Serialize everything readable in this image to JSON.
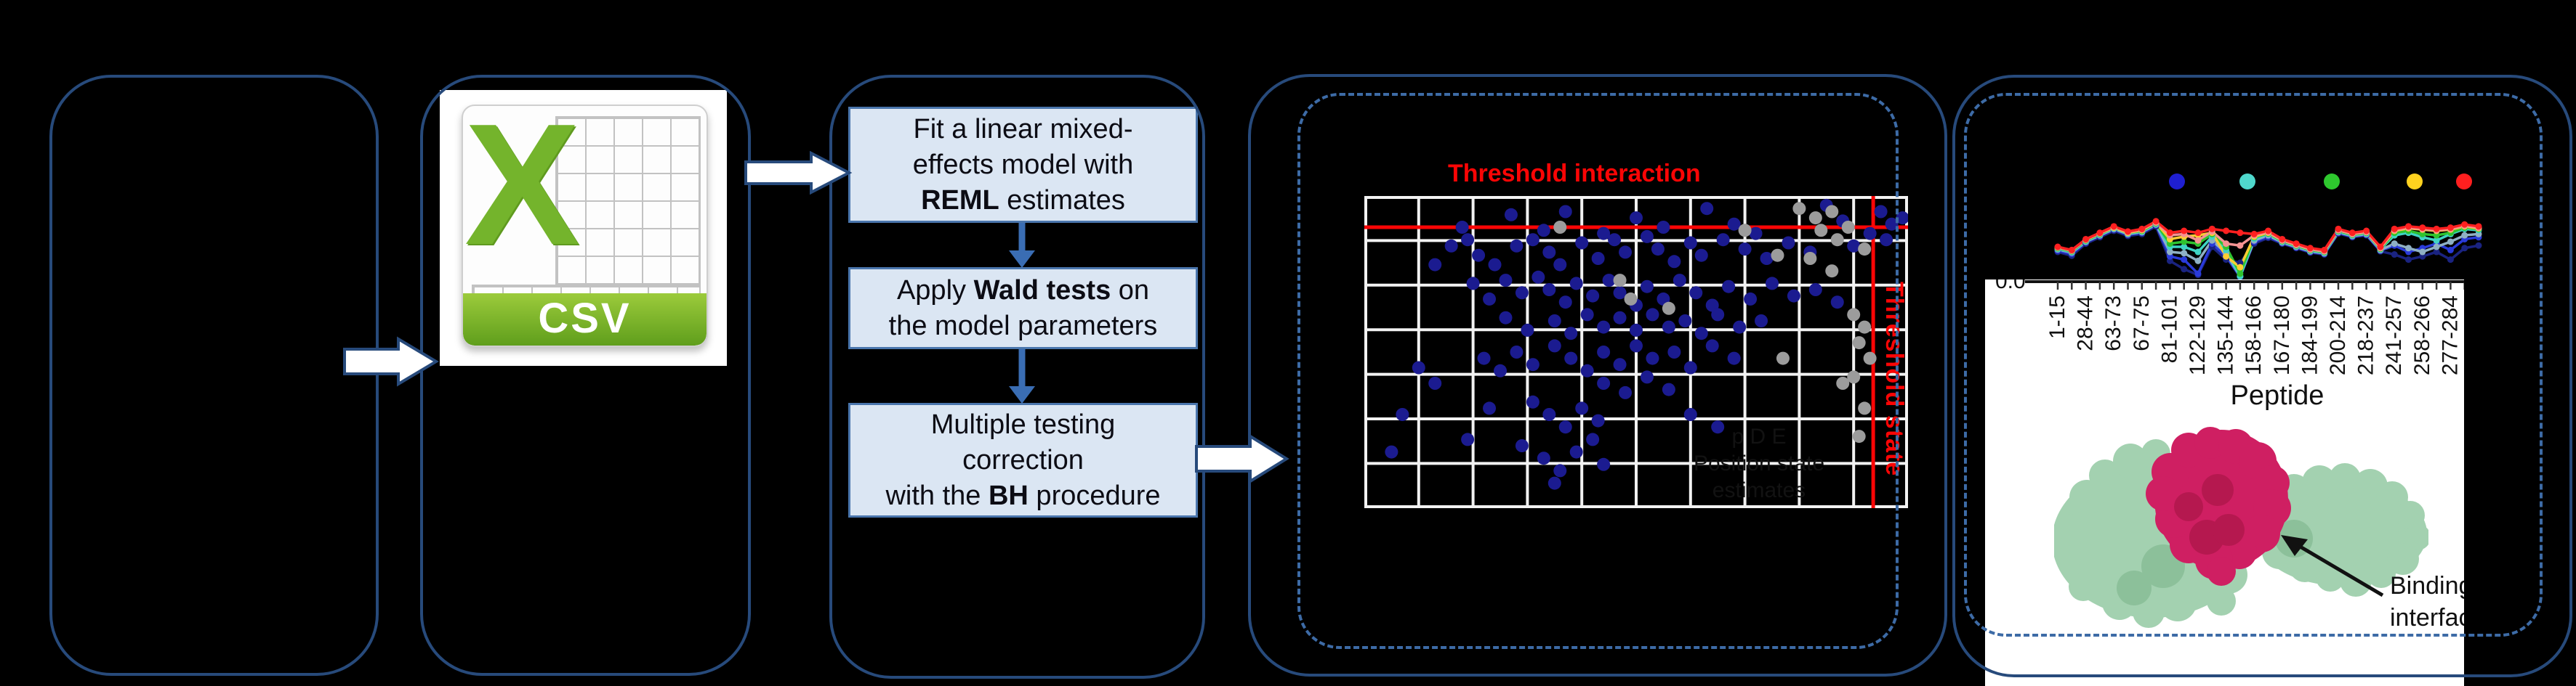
{
  "figure": {
    "background": "#000000",
    "panel_border_color": "#274a7b",
    "dashed_border_color": "#3d6ba6",
    "red_accent": "#fb0505"
  },
  "panel2": {
    "csv_icon": {
      "letter": "X",
      "banner_label": "CSV"
    }
  },
  "panel3": {
    "boxes": [
      {
        "lines": [
          [
            {
              "t": "Fit a linear mixed-",
              "b": 0
            }
          ],
          [
            {
              "t": "effects model with",
              "b": 0
            }
          ],
          [
            {
              "t": "REML",
              "b": 1
            },
            {
              "t": " estimates",
              "b": 0
            }
          ]
        ]
      },
      {
        "lines": [
          [
            {
              "t": "Apply ",
              "b": 0
            },
            {
              "t": "Wald tests",
              "b": 1
            },
            {
              "t": " on",
              "b": 0
            }
          ],
          [
            {
              "t": "the model parameters",
              "b": 0
            }
          ]
        ]
      },
      {
        "lines": [
          [
            {
              "t": "Multiple testing",
              "b": 0
            }
          ],
          [
            {
              "t": "correction",
              "b": 0
            }
          ],
          [
            {
              "t": "with the ",
              "b": 0
            },
            {
              "t": "BH",
              "b": 1
            },
            {
              "t": " procedure",
              "b": 0
            }
          ]
        ]
      }
    ]
  },
  "panel4": {
    "threshold_interaction": "Threshold interaction",
    "threshold_state": "Threshold state",
    "faint_caption": [
      "p    D    E",
      "Position state estimates"
    ]
  },
  "panel5": {
    "annotation": [
      "Binding",
      "interface"
    ]
  },
  "chart_data": [
    {
      "type": "scatter",
      "title": "Threshold interaction",
      "annotations": [
        "Threshold interaction",
        "Threshold state"
      ],
      "grid": "on",
      "threshold_interaction_y": 0.1,
      "threshold_state_x": 0.936,
      "series": [
        {
          "name": "significant-points",
          "color": "#1b1b90",
          "points": [
            [
              0.18,
              0.1
            ],
            [
              0.27,
              0.06
            ],
            [
              0.33,
              0.11
            ],
            [
              0.37,
              0.05
            ],
            [
              0.44,
              0.12
            ],
            [
              0.5,
              0.07
            ],
            [
              0.55,
              0.1
            ],
            [
              0.63,
              0.04
            ],
            [
              0.68,
              0.09
            ],
            [
              0.72,
              0.12
            ],
            [
              0.85,
              0.03
            ],
            [
              0.88,
              0.08
            ],
            [
              0.95,
              0.05
            ],
            [
              0.97,
              0.09
            ],
            [
              0.93,
              0.12
            ],
            [
              0.99,
              0.07
            ],
            [
              0.16,
              0.16
            ],
            [
              0.19,
              0.14
            ],
            [
              0.21,
              0.19
            ],
            [
              0.24,
              0.22
            ],
            [
              0.28,
              0.16
            ],
            [
              0.31,
              0.14
            ],
            [
              0.34,
              0.18
            ],
            [
              0.36,
              0.22
            ],
            [
              0.4,
              0.15
            ],
            [
              0.43,
              0.2
            ],
            [
              0.46,
              0.14
            ],
            [
              0.48,
              0.18
            ],
            [
              0.52,
              0.13
            ],
            [
              0.54,
              0.17
            ],
            [
              0.57,
              0.21
            ],
            [
              0.6,
              0.15
            ],
            [
              0.62,
              0.19
            ],
            [
              0.66,
              0.14
            ],
            [
              0.7,
              0.17
            ],
            [
              0.74,
              0.2
            ],
            [
              0.78,
              0.15
            ],
            [
              0.82,
              0.18
            ],
            [
              0.9,
              0.16
            ],
            [
              0.96,
              0.14
            ],
            [
              0.13,
              0.22
            ],
            [
              0.2,
              0.28
            ],
            [
              0.23,
              0.33
            ],
            [
              0.26,
              0.27
            ],
            [
              0.29,
              0.31
            ],
            [
              0.32,
              0.26
            ],
            [
              0.34,
              0.3
            ],
            [
              0.37,
              0.34
            ],
            [
              0.39,
              0.28
            ],
            [
              0.42,
              0.32
            ],
            [
              0.45,
              0.27
            ],
            [
              0.47,
              0.31
            ],
            [
              0.5,
              0.35
            ],
            [
              0.52,
              0.29
            ],
            [
              0.55,
              0.33
            ],
            [
              0.58,
              0.27
            ],
            [
              0.61,
              0.31
            ],
            [
              0.64,
              0.35
            ],
            [
              0.67,
              0.29
            ],
            [
              0.71,
              0.33
            ],
            [
              0.75,
              0.28
            ],
            [
              0.79,
              0.32
            ],
            [
              0.83,
              0.3
            ],
            [
              0.87,
              0.34
            ],
            [
              0.35,
              0.4
            ],
            [
              0.38,
              0.44
            ],
            [
              0.41,
              0.38
            ],
            [
              0.44,
              0.42
            ],
            [
              0.47,
              0.39
            ],
            [
              0.5,
              0.43
            ],
            [
              0.53,
              0.38
            ],
            [
              0.56,
              0.42
            ],
            [
              0.59,
              0.4
            ],
            [
              0.62,
              0.44
            ],
            [
              0.65,
              0.38
            ],
            [
              0.69,
              0.42
            ],
            [
              0.73,
              0.4
            ],
            [
              0.3,
              0.43
            ],
            [
              0.26,
              0.39
            ],
            [
              0.22,
              0.52
            ],
            [
              0.25,
              0.56
            ],
            [
              0.28,
              0.5
            ],
            [
              0.31,
              0.54
            ],
            [
              0.35,
              0.48
            ],
            [
              0.38,
              0.52
            ],
            [
              0.41,
              0.56
            ],
            [
              0.44,
              0.5
            ],
            [
              0.47,
              0.54
            ],
            [
              0.5,
              0.48
            ],
            [
              0.53,
              0.52
            ],
            [
              0.57,
              0.5
            ],
            [
              0.6,
              0.55
            ],
            [
              0.64,
              0.48
            ],
            [
              0.68,
              0.52
            ],
            [
              0.1,
              0.55
            ],
            [
              0.13,
              0.6
            ],
            [
              0.44,
              0.6
            ],
            [
              0.48,
              0.63
            ],
            [
              0.52,
              0.58
            ],
            [
              0.56,
              0.62
            ],
            [
              0.07,
              0.7
            ],
            [
              0.19,
              0.78
            ],
            [
              0.23,
              0.68
            ],
            [
              0.31,
              0.66
            ],
            [
              0.34,
              0.7
            ],
            [
              0.37,
              0.74
            ],
            [
              0.4,
              0.68
            ],
            [
              0.43,
              0.72
            ],
            [
              0.29,
              0.8
            ],
            [
              0.33,
              0.84
            ],
            [
              0.36,
              0.88
            ],
            [
              0.39,
              0.82
            ],
            [
              0.42,
              0.78
            ],
            [
              0.35,
              0.92
            ],
            [
              0.44,
              0.86
            ],
            [
              0.05,
              0.82
            ],
            [
              0.6,
              0.7
            ],
            [
              0.65,
              0.74
            ]
          ]
        },
        {
          "name": "non-significant-points",
          "color": "#9c9c9c",
          "points": [
            [
              0.8,
              0.04
            ],
            [
              0.83,
              0.07
            ],
            [
              0.86,
              0.05
            ],
            [
              0.84,
              0.11
            ],
            [
              0.87,
              0.14
            ],
            [
              0.89,
              0.1
            ],
            [
              0.92,
              0.17
            ],
            [
              0.82,
              0.2
            ],
            [
              0.86,
              0.24
            ],
            [
              0.9,
              0.38
            ],
            [
              0.92,
              0.42
            ],
            [
              0.91,
              0.47
            ],
            [
              0.93,
              0.52
            ],
            [
              0.9,
              0.58
            ],
            [
              0.92,
              0.68
            ],
            [
              0.88,
              0.6
            ],
            [
              0.91,
              0.77
            ],
            [
              0.47,
              0.27
            ],
            [
              0.49,
              0.33
            ],
            [
              0.56,
              0.36
            ],
            [
              0.77,
              0.52
            ],
            [
              0.7,
              0.11
            ],
            [
              0.76,
              0.19
            ],
            [
              0.36,
              0.1
            ]
          ]
        }
      ]
    },
    {
      "type": "line",
      "xlabel": "Peptide",
      "x_tick_labels": [
        "1-15",
        "28-44",
        "63-73",
        "67-75",
        "81-101",
        "122-129",
        "135-144",
        "158-166",
        "167-180",
        "184-199",
        "200-214",
        "218-237",
        "241-257",
        "258-266",
        "277-284"
      ],
      "y_tick_labels": [
        "0.0"
      ],
      "legend_dot_colors": [
        "#1f1fd1",
        "#4fd8cc",
        "#2ec82e",
        "#ffd21f",
        "#ff1f1f"
      ],
      "series": [
        {
          "name": "navy",
          "color": "#1a2380",
          "values": [
            0.42,
            0.36,
            0.55,
            0.65,
            0.75,
            0.67,
            0.7,
            0.82,
            0.28,
            0.15,
            0.06,
            0.5,
            0.3,
            0.25,
            0.55,
            0.64,
            0.55,
            0.48,
            0.41,
            0.38,
            0.71,
            0.65,
            0.68,
            0.43,
            0.38,
            0.3,
            0.35,
            0.42,
            0.3,
            0.48,
            0.52
          ]
        },
        {
          "name": "blue",
          "color": "#2a3bda",
          "values": [
            0.44,
            0.39,
            0.57,
            0.67,
            0.77,
            0.69,
            0.72,
            0.84,
            0.35,
            0.3,
            0.08,
            0.55,
            0.35,
            0.03,
            0.58,
            0.66,
            0.56,
            0.49,
            0.42,
            0.39,
            0.72,
            0.66,
            0.69,
            0.44,
            0.52,
            0.42,
            0.48,
            0.55,
            0.45,
            0.62,
            0.65
          ]
        },
        {
          "name": "steelblue",
          "color": "#8fb0c4",
          "values": [
            0.46,
            0.41,
            0.58,
            0.68,
            0.78,
            0.7,
            0.73,
            0.85,
            0.42,
            0.4,
            0.28,
            0.6,
            0.4,
            0.04,
            0.6,
            0.68,
            0.57,
            0.5,
            0.43,
            0.4,
            0.73,
            0.67,
            0.7,
            0.45,
            0.55,
            0.48,
            0.42,
            0.5,
            0.58,
            0.68,
            0.7
          ]
        },
        {
          "name": "teal",
          "color": "#3fd4c4",
          "values": [
            0.47,
            0.42,
            0.59,
            0.69,
            0.79,
            0.71,
            0.74,
            0.86,
            0.5,
            0.5,
            0.42,
            0.66,
            0.45,
            0.04,
            0.63,
            0.7,
            0.58,
            0.51,
            0.44,
            0.41,
            0.74,
            0.68,
            0.71,
            0.46,
            0.68,
            0.72,
            0.65,
            0.6,
            0.7,
            0.78,
            0.76
          ]
        },
        {
          "name": "green",
          "color": "#2fc32f",
          "values": [
            0.48,
            0.43,
            0.6,
            0.7,
            0.8,
            0.72,
            0.75,
            0.87,
            0.55,
            0.58,
            0.55,
            0.7,
            0.5,
            0.08,
            0.65,
            0.71,
            0.59,
            0.52,
            0.45,
            0.42,
            0.75,
            0.69,
            0.72,
            0.47,
            0.72,
            0.75,
            0.7,
            0.68,
            0.72,
            0.8,
            0.78
          ]
        },
        {
          "name": "gold",
          "color": "#ffcc33",
          "values": [
            0.49,
            0.44,
            0.61,
            0.71,
            0.8,
            0.72,
            0.76,
            0.88,
            0.62,
            0.66,
            0.68,
            0.72,
            0.35,
            0.18,
            0.66,
            0.72,
            0.6,
            0.53,
            0.46,
            0.43,
            0.76,
            0.7,
            0.73,
            0.48,
            0.75,
            0.79,
            0.77,
            0.75,
            0.77,
            0.82,
            0.79
          ]
        },
        {
          "name": "salmon",
          "color": "#f59393",
          "values": [
            0.49,
            0.44,
            0.61,
            0.71,
            0.81,
            0.73,
            0.77,
            0.88,
            0.68,
            0.7,
            0.6,
            0.74,
            0.55,
            0.52,
            0.68,
            0.73,
            0.6,
            0.53,
            0.46,
            0.43,
            0.76,
            0.7,
            0.73,
            0.48,
            0.76,
            0.8,
            0.78,
            0.76,
            0.78,
            0.83,
            0.8
          ]
        },
        {
          "name": "red",
          "color": "#ff2020",
          "values": [
            0.5,
            0.45,
            0.62,
            0.72,
            0.82,
            0.74,
            0.78,
            0.9,
            0.72,
            0.75,
            0.72,
            0.78,
            0.75,
            0.72,
            0.7,
            0.75,
            0.62,
            0.55,
            0.48,
            0.45,
            0.78,
            0.72,
            0.75,
            0.5,
            0.78,
            0.82,
            0.8,
            0.78,
            0.8,
            0.85,
            0.82
          ]
        }
      ]
    }
  ]
}
